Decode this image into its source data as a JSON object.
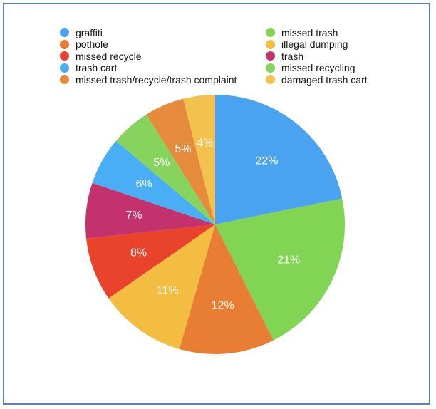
{
  "chart_data": {
    "type": "pie",
    "title": "",
    "legend_position": "top",
    "slices": [
      {
        "label": "graffiti",
        "value": 22,
        "display": "22%",
        "color": "#4aa3f0"
      },
      {
        "label": "missed trash",
        "value": 21,
        "display": "21%",
        "color": "#82d455"
      },
      {
        "label": "pothole",
        "value": 12,
        "display": "12%",
        "color": "#e87e33"
      },
      {
        "label": "illegal dumping",
        "value": 11,
        "display": "11%",
        "color": "#f2bd41"
      },
      {
        "label": "missed recycle",
        "value": 8,
        "display": "8%",
        "color": "#ea432c"
      },
      {
        "label": "trash",
        "value": 7,
        "display": "7%",
        "color": "#c4326e"
      },
      {
        "label": "trash cart",
        "value": 6,
        "display": "6%",
        "color": "#4aaef5"
      },
      {
        "label": "missed recycling",
        "value": 5,
        "display": "5%",
        "color": "#86d45e"
      },
      {
        "label": "missed trash/recycle/trash complaint",
        "value": 5,
        "display": "5%",
        "color": "#e68a3c"
      },
      {
        "label": "damaged trash cart",
        "value": 4,
        "display": "4%",
        "color": "#f2c14e"
      }
    ],
    "legend_order": [
      "graffiti",
      "pothole",
      "missed recycle",
      "trash cart",
      "missed trash/recycle/trash complaint",
      "missed trash",
      "illegal dumping",
      "trash",
      "missed recycling",
      "damaged trash cart"
    ]
  }
}
